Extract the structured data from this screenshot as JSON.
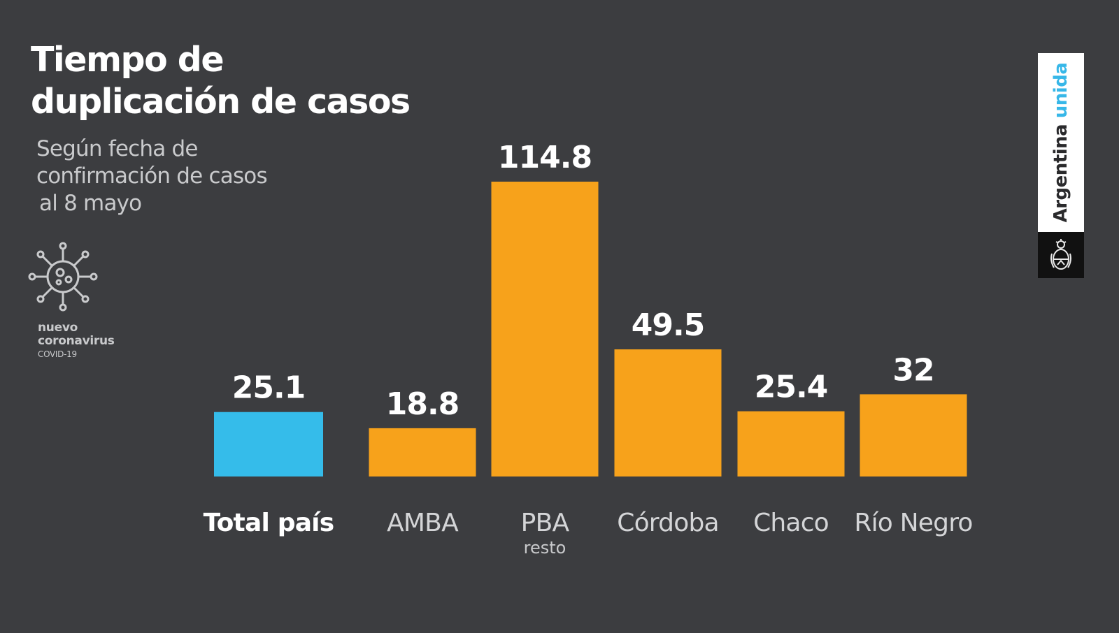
{
  "title": "Tiempo de\nduplicación de casos",
  "subtitle": {
    "line1": "Según fecha de",
    "line2": "confirmación de casos",
    "line3": "al 8 mayo"
  },
  "covid_badge": {
    "icon": "virus-icon",
    "line1": "nuevo",
    "line2": "coronavirus",
    "line3": "COVID-19"
  },
  "brand": {
    "word1": "Argentina",
    "word2": "unida",
    "emblem_icon": "coat-of-arms-icon"
  },
  "colors": {
    "background": "#3c3d40",
    "total": "#35bcea",
    "region": "#f7a21b"
  },
  "chart_data": {
    "type": "bar",
    "categories": [
      "Total país",
      "AMBA",
      "PBA",
      "Córdoba",
      "Chaco",
      "Río Negro"
    ],
    "category_sublabels": [
      "",
      "",
      "resto",
      "",
      "",
      ""
    ],
    "values": [
      25.1,
      18.8,
      114.8,
      49.5,
      25.4,
      32
    ],
    "value_labels": [
      "25.1",
      "18.8",
      "114.8",
      "49.5",
      "25.4",
      "32"
    ],
    "highlight_index": 0,
    "ylim": [
      0,
      114.8
    ],
    "grid": false,
    "legend": "none"
  }
}
